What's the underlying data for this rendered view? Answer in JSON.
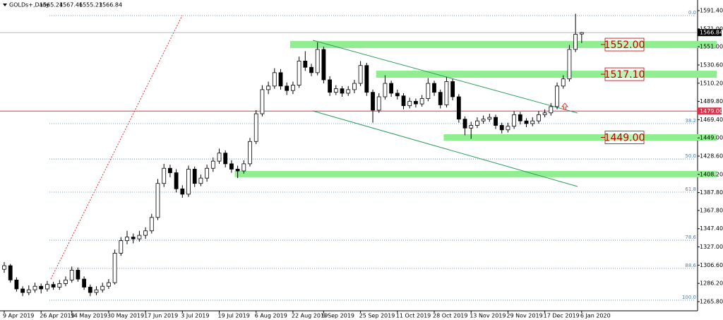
{
  "chart_data": {
    "type": "candlestick",
    "title": "GOLDs+,Daily",
    "colors": {
      "up": "#ffffff",
      "down": "#000000",
      "wick": "#000000",
      "zone": "#90ee90",
      "fib": "#4f81bd",
      "channel": "#2e9e5b",
      "zone_label": "#c00000"
    },
    "grid": false,
    "xlim": [
      -0.69,
      112.87
    ],
    "ylim": [
      1255.5,
      1603.3
    ],
    "yticks": [
      {
        "value": 1591.4,
        "label": "1591.40"
      },
      {
        "value": 1571,
        "label": "1571.00"
      },
      {
        "value": 1551,
        "label": "1551.00"
      },
      {
        "value": 1530.6,
        "label": "1530.60"
      },
      {
        "value": 1510.2,
        "label": "1510.20"
      },
      {
        "value": 1489.8,
        "label": "1489.80"
      },
      {
        "value": 1469.4,
        "label": "1469.40"
      },
      {
        "value": 1449,
        "label": "1449.00"
      },
      {
        "value": 1428.6,
        "label": "1428.60"
      },
      {
        "value": 1408.2,
        "label": "1408.20"
      },
      {
        "value": 1387.8,
        "label": "1387.80"
      },
      {
        "value": 1367.8,
        "label": "1367.80"
      },
      {
        "value": 1347.4,
        "label": "1347.40"
      },
      {
        "value": 1327,
        "label": "1327.00"
      },
      {
        "value": 1306.6,
        "label": "1306.60"
      },
      {
        "value": 1286.2,
        "label": "1286.20"
      },
      {
        "value": 1265.8,
        "label": "1265.80"
      }
    ],
    "xticks": [
      {
        "value": 0,
        "label": "9 Apr 2019"
      },
      {
        "value": 6,
        "label": "26 Apr 2019"
      },
      {
        "value": 11,
        "label": "14 May 2019"
      },
      {
        "value": 17,
        "label": "30 May 2019"
      },
      {
        "value": 23,
        "label": "17 Jun 2019"
      },
      {
        "value": 29,
        "label": "3 Jul 2019"
      },
      {
        "value": 35,
        "label": "19 Jul 2019"
      },
      {
        "value": 41,
        "label": "6 Aug 2019"
      },
      {
        "value": 47,
        "label": "22 Aug 2019"
      },
      {
        "value": 52,
        "label": "9 Sep 2019"
      },
      {
        "value": 58,
        "label": "25 Sep 2019"
      },
      {
        "value": 64,
        "label": "11 Oct 2019"
      },
      {
        "value": 70,
        "label": "28 Oct 2019"
      },
      {
        "value": 76,
        "label": "13 Nov 2019"
      },
      {
        "value": 82,
        "label": "29 Nov 2019"
      },
      {
        "value": 88,
        "label": "17 Dec 2019"
      },
      {
        "value": 94,
        "label": "6 Jan 2020"
      }
    ],
    "candles": [
      [
        1302,
        1310,
        1298,
        1306
      ],
      [
        1306,
        1308,
        1287,
        1290
      ],
      [
        1290,
        1293,
        1277,
        1280
      ],
      [
        1280,
        1283,
        1272,
        1276
      ],
      [
        1276,
        1284,
        1273,
        1279
      ],
      [
        1279,
        1287,
        1276,
        1283
      ],
      [
        1283,
        1286,
        1275,
        1280
      ],
      [
        1280,
        1289,
        1277,
        1285
      ],
      [
        1285,
        1288,
        1279,
        1282
      ],
      [
        1282,
        1290,
        1279,
        1286
      ],
      [
        1286,
        1294,
        1283,
        1290
      ],
      [
        1290,
        1305,
        1287,
        1301
      ],
      [
        1301,
        1304,
        1288,
        1291
      ],
      [
        1291,
        1294,
        1279,
        1282
      ],
      [
        1282,
        1285,
        1272,
        1276
      ],
      [
        1276,
        1283,
        1273,
        1279
      ],
      [
        1279,
        1287,
        1276,
        1283
      ],
      [
        1283,
        1291,
        1280,
        1287
      ],
      [
        1287,
        1324,
        1285,
        1320
      ],
      [
        1320,
        1338,
        1317,
        1334
      ],
      [
        1334,
        1345,
        1330,
        1338
      ],
      [
        1338,
        1342,
        1331,
        1336
      ],
      [
        1336,
        1345,
        1333,
        1340
      ],
      [
        1340,
        1349,
        1336,
        1345
      ],
      [
        1345,
        1364,
        1342,
        1360
      ],
      [
        1360,
        1403,
        1357,
        1398
      ],
      [
        1398,
        1420,
        1394,
        1415
      ],
      [
        1415,
        1419,
        1405,
        1410
      ],
      [
        1410,
        1414,
        1388,
        1392
      ],
      [
        1392,
        1396,
        1382,
        1386
      ],
      [
        1386,
        1418,
        1383,
        1414
      ],
      [
        1414,
        1417,
        1394,
        1398
      ],
      [
        1398,
        1408,
        1395,
        1404
      ],
      [
        1404,
        1419,
        1400,
        1415
      ],
      [
        1415,
        1427,
        1411,
        1423
      ],
      [
        1423,
        1437,
        1420,
        1432
      ],
      [
        1432,
        1435,
        1416,
        1420
      ],
      [
        1420,
        1424,
        1410,
        1414
      ],
      [
        1414,
        1418,
        1404,
        1412
      ],
      [
        1412,
        1424,
        1409,
        1420
      ],
      [
        1420,
        1449,
        1417,
        1445
      ],
      [
        1445,
        1480,
        1442,
        1476
      ],
      [
        1476,
        1508,
        1473,
        1503
      ],
      [
        1503,
        1512,
        1498,
        1507
      ],
      [
        1507,
        1527,
        1504,
        1522
      ],
      [
        1522,
        1526,
        1503,
        1507
      ],
      [
        1507,
        1511,
        1497,
        1502
      ],
      [
        1502,
        1512,
        1498,
        1508
      ],
      [
        1508,
        1540,
        1505,
        1535
      ],
      [
        1535,
        1546,
        1524,
        1528
      ],
      [
        1528,
        1532,
        1518,
        1522
      ],
      [
        1522,
        1556,
        1519,
        1548
      ],
      [
        1548,
        1551,
        1510,
        1514
      ],
      [
        1514,
        1518,
        1496,
        1500
      ],
      [
        1500,
        1508,
        1497,
        1504
      ],
      [
        1504,
        1507,
        1495,
        1499
      ],
      [
        1499,
        1507,
        1496,
        1503
      ],
      [
        1503,
        1514,
        1499,
        1510
      ],
      [
        1510,
        1535,
        1507,
        1530
      ],
      [
        1530,
        1533,
        1496,
        1500
      ],
      [
        1500,
        1503,
        1466,
        1480
      ],
      [
        1480,
        1499,
        1477,
        1495
      ],
      [
        1495,
        1519,
        1492,
        1510
      ],
      [
        1510,
        1513,
        1495,
        1499
      ],
      [
        1499,
        1503,
        1492,
        1496
      ],
      [
        1496,
        1499,
        1481,
        1485
      ],
      [
        1485,
        1494,
        1482,
        1490
      ],
      [
        1490,
        1493,
        1483,
        1487
      ],
      [
        1487,
        1497,
        1484,
        1493
      ],
      [
        1493,
        1516,
        1490,
        1510
      ],
      [
        1510,
        1513,
        1496,
        1500
      ],
      [
        1500,
        1503,
        1482,
        1486
      ],
      [
        1486,
        1517,
        1483,
        1512
      ],
      [
        1512,
        1515,
        1491,
        1495
      ],
      [
        1495,
        1498,
        1466,
        1470
      ],
      [
        1470,
        1473,
        1452,
        1460
      ],
      [
        1460,
        1467,
        1448,
        1463
      ],
      [
        1463,
        1472,
        1460,
        1468
      ],
      [
        1468,
        1474,
        1465,
        1470
      ],
      [
        1470,
        1476,
        1467,
        1472
      ],
      [
        1472,
        1475,
        1459,
        1463
      ],
      [
        1463,
        1466,
        1454,
        1458
      ],
      [
        1458,
        1466,
        1455,
        1462
      ],
      [
        1462,
        1479,
        1459,
        1475
      ],
      [
        1475,
        1478,
        1464,
        1468
      ],
      [
        1468,
        1471,
        1461,
        1465
      ],
      [
        1465,
        1472,
        1462,
        1468
      ],
      [
        1468,
        1479,
        1465,
        1475
      ],
      [
        1475,
        1481,
        1472,
        1477
      ],
      [
        1477,
        1488,
        1474,
        1484
      ],
      [
        1484,
        1511,
        1481,
        1507
      ],
      [
        1507,
        1519,
        1504,
        1515
      ],
      [
        1515,
        1553,
        1512,
        1548
      ],
      [
        1548,
        1588,
        1545,
        1565
      ],
      [
        1565.24,
        1567.46,
        1555.23,
        1566.84
      ]
    ],
    "fib_levels": [
      {
        "label": "0.0",
        "price": 1585.9
      },
      {
        "label": "38.2",
        "price": 1465.0
      },
      {
        "label": "50.0",
        "price": 1425.4
      },
      {
        "label": "61.8",
        "price": 1388.3
      },
      {
        "label": "78.6",
        "price": 1334.5
      },
      {
        "label": "88.6",
        "price": 1303.0
      },
      {
        "label": "100.0",
        "price": 1267.4
      }
    ],
    "zones": [
      {
        "start": 47,
        "low": 1549.5,
        "high": 1557.4,
        "label": "1552.00"
      },
      {
        "start": 61,
        "low": 1516.3,
        "high": 1524.2,
        "label": "1517.10"
      },
      {
        "start": 72,
        "low": 1446.0,
        "high": 1453.1,
        "label": "1449.00"
      },
      {
        "start": 38,
        "low": 1405.0,
        "high": 1412.0
      }
    ],
    "hline": {
      "value": 1479,
      "label": "1479.00",
      "color": "#e0304a"
    }
  }
}
